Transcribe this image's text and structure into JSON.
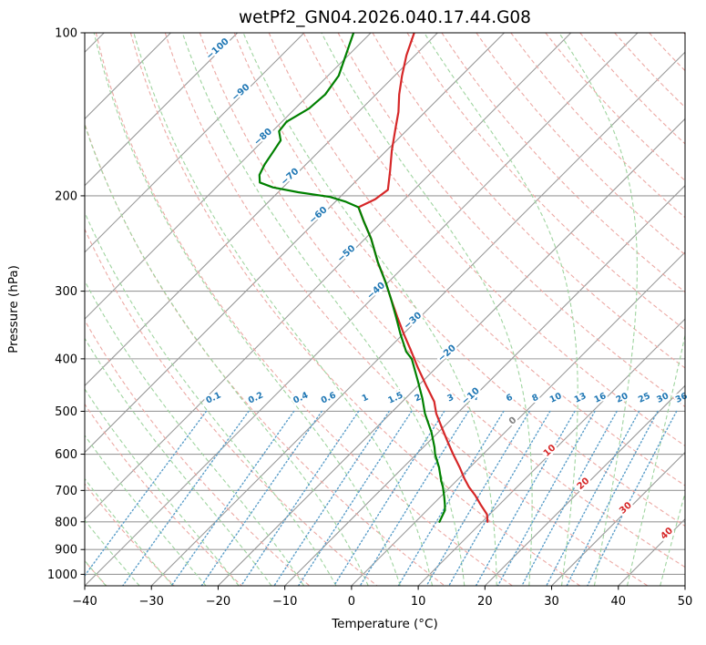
{
  "chart_data": {
    "type": "line",
    "subtype": "skew-t-log-p",
    "title": "wetPf2_GN04.2026.040.17.44.G08",
    "xlabel": "Temperature (°C)",
    "ylabel": "Pressure (hPa)",
    "xlim": [
      -40,
      50
    ],
    "p_top": 100,
    "p_bottom": 1050,
    "y_scale": "log",
    "skew_deg": 45,
    "grid": true,
    "x_ticks": [
      -40,
      -30,
      -20,
      -10,
      0,
      10,
      20,
      30,
      40,
      50
    ],
    "y_ticks": [
      100,
      200,
      300,
      400,
      500,
      600,
      700,
      800,
      900,
      1000
    ],
    "isotherms": {
      "start": -120,
      "end": 50,
      "step": 10,
      "color": "#9a9a9a",
      "label_colors": {
        "negative": "#1f77b4",
        "zero": "#808080",
        "positive": "#d62728"
      }
    },
    "isotherm_labels": [
      {
        "t": -100,
        "p": 108
      },
      {
        "t": -90,
        "p": 130
      },
      {
        "t": -80,
        "p": 157
      },
      {
        "t": -70,
        "p": 186
      },
      {
        "t": -60,
        "p": 219
      },
      {
        "t": -50,
        "p": 258
      },
      {
        "t": -40,
        "p": 302
      },
      {
        "t": -30,
        "p": 343
      },
      {
        "t": -20,
        "p": 394
      },
      {
        "t": -10,
        "p": 473
      },
      {
        "t": 0,
        "p": 525
      },
      {
        "t": 10,
        "p": 596
      },
      {
        "t": 20,
        "p": 686
      },
      {
        "t": 30,
        "p": 761
      },
      {
        "t": 40,
        "p": 848
      }
    ],
    "dry_adiabats": {
      "start": -40,
      "end": 200,
      "step": 10,
      "color": "#eca9a4"
    },
    "moist_adiabats": {
      "start": -40,
      "end": 50,
      "step": 5,
      "color": "#9fd49f"
    },
    "mixing_ratio": {
      "values": [
        0.1,
        0.2,
        0.4,
        0.6,
        1,
        1.5,
        2,
        3,
        4,
        6,
        8,
        10,
        13,
        16,
        20,
        25,
        30,
        36
      ],
      "units": "g/kg",
      "color": "#5b9ec9",
      "label_color": "#1f77b4",
      "line_top_p": 500,
      "label_p": 477,
      "label_rotation": -25
    },
    "series": [
      {
        "name": "temperature",
        "color": "#d62728",
        "points": [
          [
            100,
            -73.5
          ],
          [
            110,
            -71.3
          ],
          [
            120,
            -68.9
          ],
          [
            130,
            -66.5
          ],
          [
            140,
            -64.0
          ],
          [
            150,
            -62.0
          ],
          [
            165,
            -59.2
          ],
          [
            180,
            -56.4
          ],
          [
            195,
            -53.9
          ],
          [
            203,
            -54.4
          ],
          [
            210,
            -55.7
          ],
          [
            222,
            -53.0
          ],
          [
            240,
            -49.1
          ],
          [
            265,
            -44.6
          ],
          [
            290,
            -40.2
          ],
          [
            310,
            -37.1
          ],
          [
            335,
            -33.4
          ],
          [
            360,
            -29.9
          ],
          [
            385,
            -26.5
          ],
          [
            415,
            -22.8
          ],
          [
            450,
            -18.6
          ],
          [
            480,
            -15.2
          ],
          [
            505,
            -13.1
          ],
          [
            540,
            -9.8
          ],
          [
            570,
            -7.1
          ],
          [
            600,
            -4.5
          ],
          [
            635,
            -1.5
          ],
          [
            665,
            0.8
          ],
          [
            690,
            2.8
          ],
          [
            715,
            5.0
          ],
          [
            745,
            7.3
          ],
          [
            775,
            9.6
          ],
          [
            800,
            10.8
          ]
        ]
      },
      {
        "name": "dewpoint",
        "color": "#008000",
        "points": [
          [
            100,
            -82.6
          ],
          [
            110,
            -80.4
          ],
          [
            120,
            -78.4
          ],
          [
            130,
            -77.6
          ],
          [
            138,
            -77.9
          ],
          [
            146,
            -79.3
          ],
          [
            152,
            -79.0
          ],
          [
            158,
            -77.4
          ],
          [
            166,
            -76.8
          ],
          [
            175,
            -76.2
          ],
          [
            183,
            -75.4
          ],
          [
            189,
            -74.2
          ],
          [
            193,
            -71.5
          ],
          [
            197,
            -67.0
          ],
          [
            201,
            -61.5
          ],
          [
            205,
            -58.5
          ],
          [
            210,
            -55.7
          ],
          [
            222,
            -53.0
          ],
          [
            240,
            -49.1
          ],
          [
            265,
            -44.6
          ],
          [
            290,
            -40.2
          ],
          [
            310,
            -37.1
          ],
          [
            335,
            -33.6
          ],
          [
            360,
            -30.4
          ],
          [
            388,
            -26.9
          ],
          [
            400,
            -25.0
          ],
          [
            440,
            -20.7
          ],
          [
            473,
            -17.5
          ],
          [
            505,
            -14.8
          ],
          [
            547,
            -11.0
          ],
          [
            583,
            -8.3
          ],
          [
            600,
            -7.2
          ],
          [
            635,
            -4.6
          ],
          [
            672,
            -2.3
          ],
          [
            690,
            -1.1
          ],
          [
            720,
            0.6
          ],
          [
            745,
            1.9
          ],
          [
            762,
            2.7
          ],
          [
            800,
            3.6
          ]
        ]
      }
    ]
  }
}
